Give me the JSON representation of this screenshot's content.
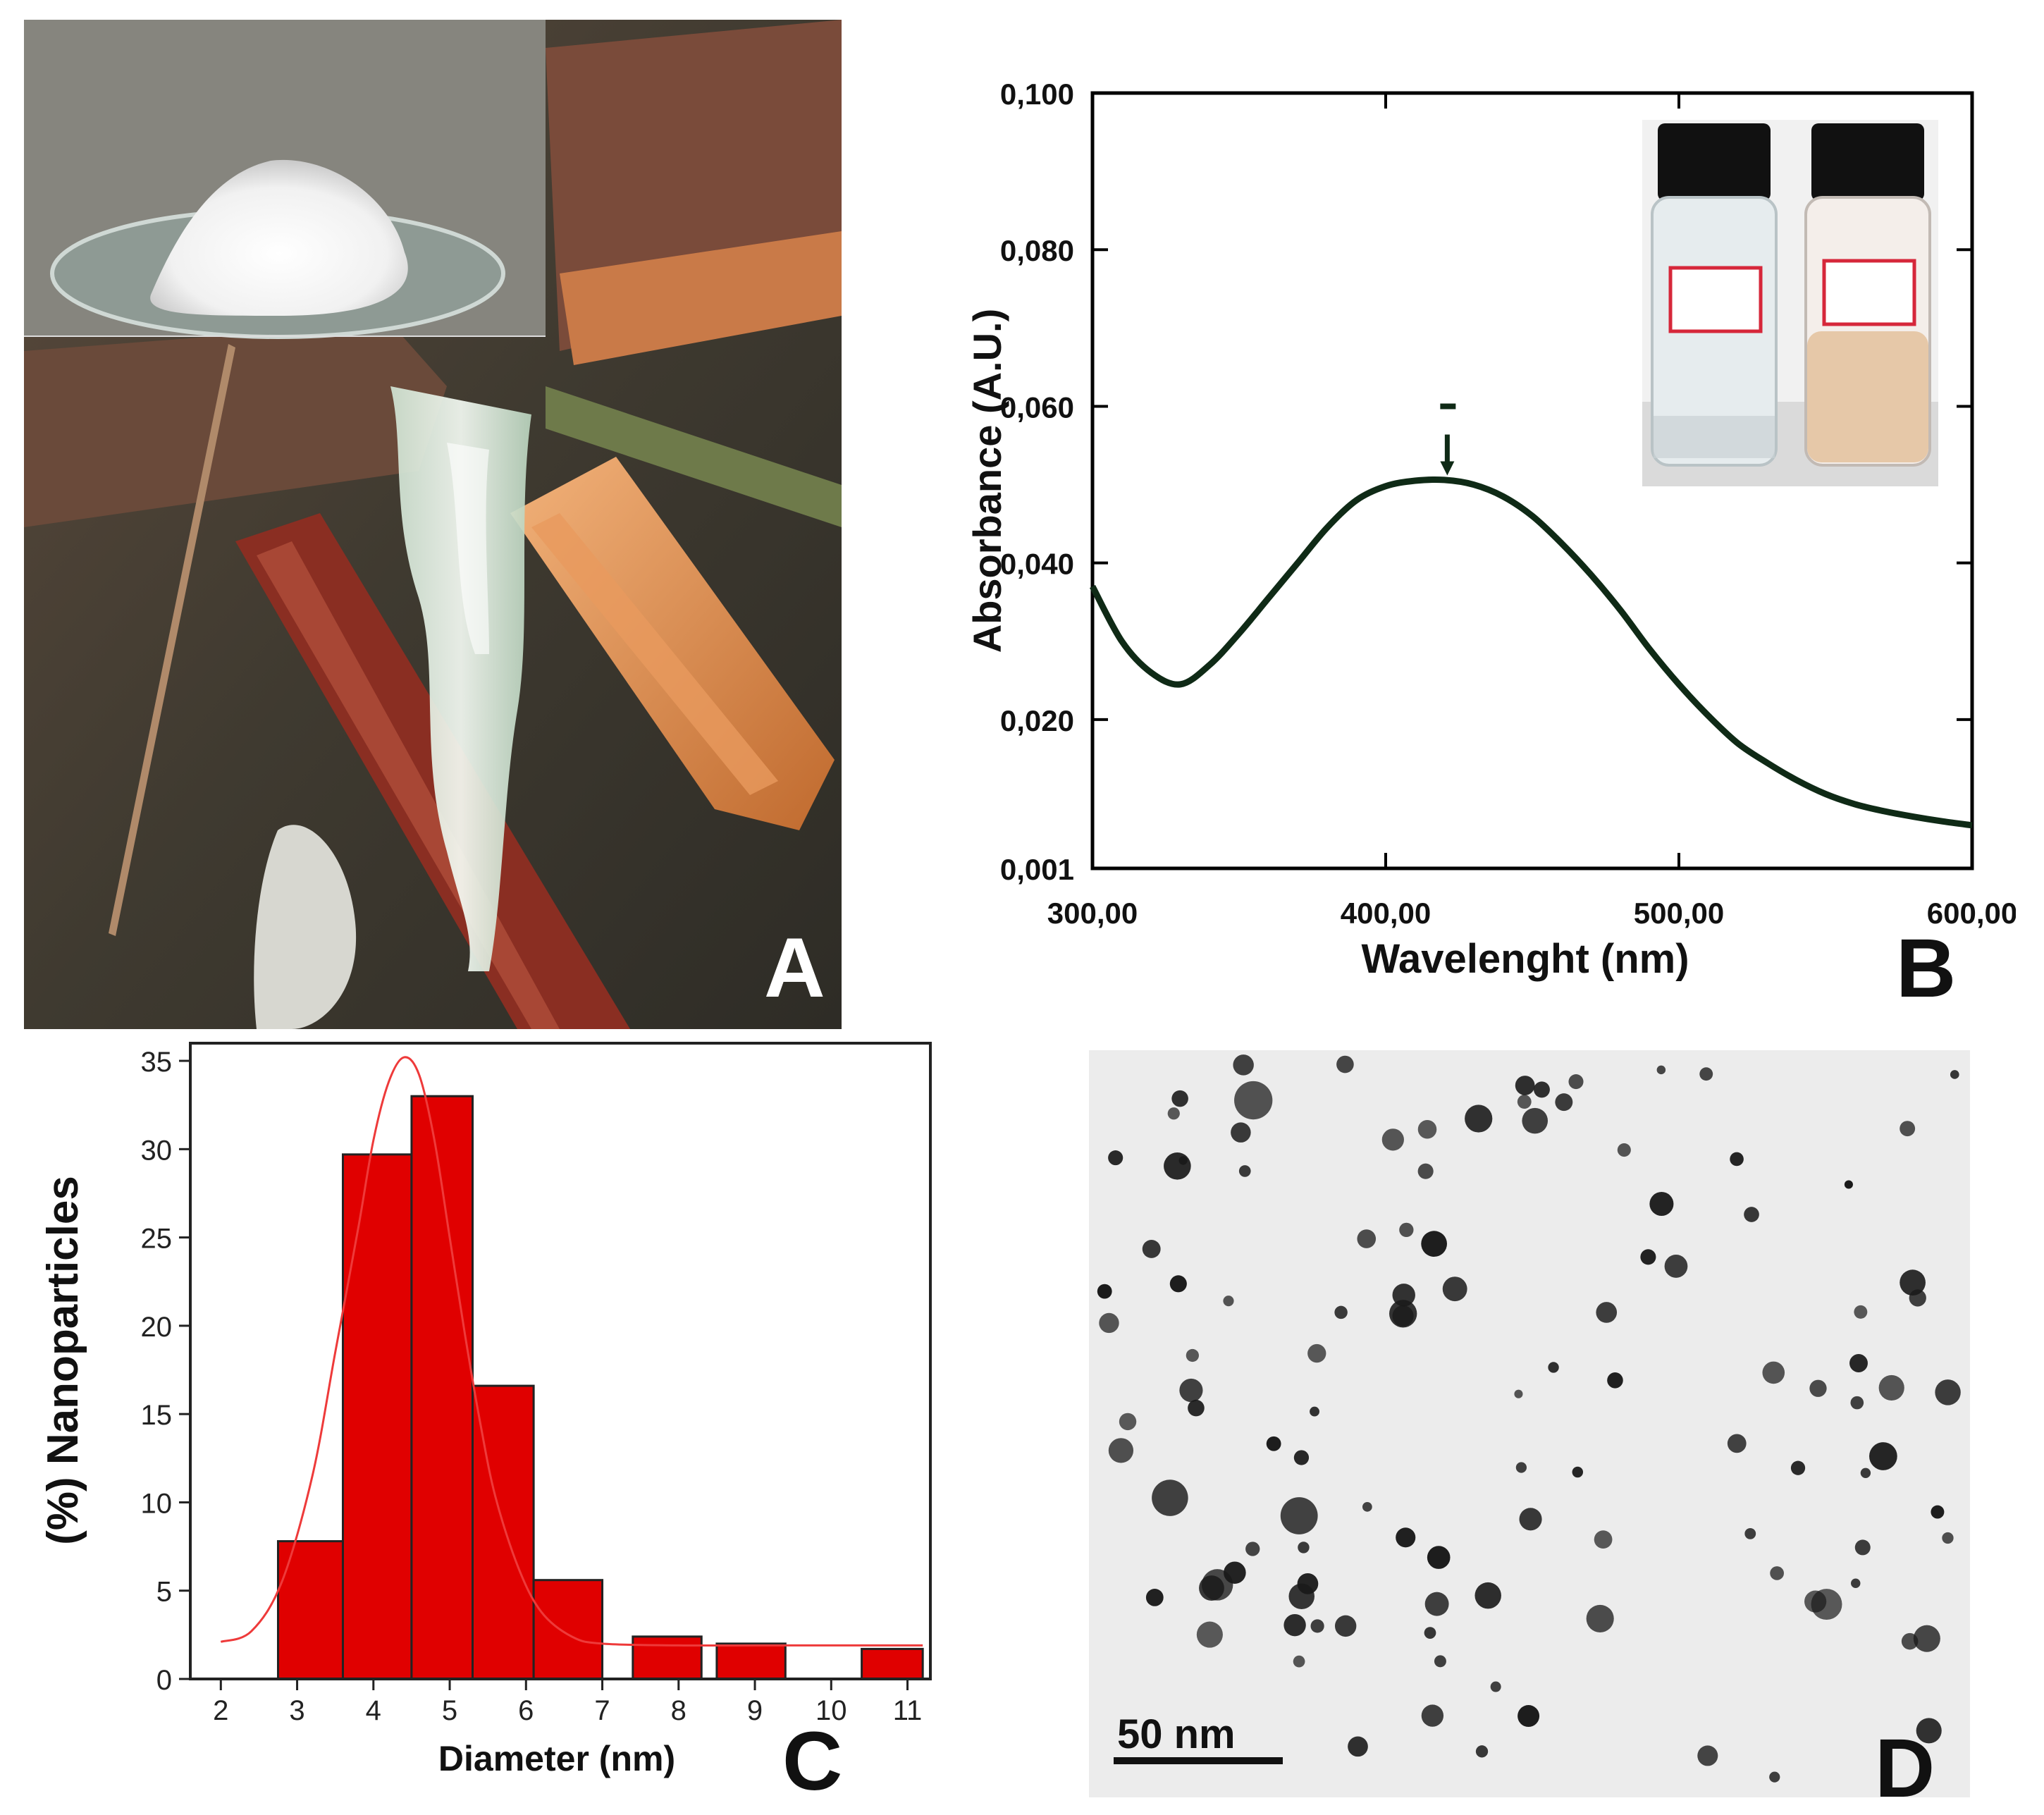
{
  "panels": {
    "a": {
      "letter": "A"
    },
    "b": {
      "letter": "B"
    },
    "c": {
      "letter": "C"
    },
    "d": {
      "letter": "D",
      "scale_bar_label": "50 nm"
    }
  },
  "colors": {
    "spectrum_line": "#0f2a16",
    "histogram_fill": "#e00000",
    "fit_curve": "#ee3a3a",
    "tem_particles": "#1a1a1a",
    "tem_background": "#ececec"
  },
  "icons": {
    "gum_photo": "tree-gum-photo",
    "powder_inset": "powder-dish-photo",
    "vials_inset": "vials-photo",
    "tem": "tem-micrograph"
  },
  "chart_data": [
    {
      "panel": "B",
      "type": "line",
      "xlabel": "Wavelenght (nm)",
      "ylabel": "Absorbance (A.U.)",
      "xlim": [
        300,
        600
      ],
      "ylim": [
        0.001,
        0.1
      ],
      "x_ticks": [
        "300,00",
        "400,00",
        "500,00",
        "600,00"
      ],
      "y_ticks": [
        "0,001",
        "0,020",
        "0,040",
        "0,060",
        "0,080",
        "0,100"
      ],
      "series": [
        {
          "x": [
            300,
            310,
            320,
            330,
            340,
            350,
            360,
            370,
            380,
            390,
            400,
            410,
            420,
            430,
            440,
            450,
            460,
            470,
            480,
            490,
            500,
            510,
            520,
            530,
            540,
            550,
            560,
            570,
            580,
            590,
            600
          ],
          "y": [
            0.037,
            0.03,
            0.026,
            0.0245,
            0.027,
            0.031,
            0.0355,
            0.04,
            0.0445,
            0.048,
            0.0498,
            0.0505,
            0.0506,
            0.05,
            0.0485,
            0.046,
            0.0425,
            0.0385,
            0.034,
            0.029,
            0.0245,
            0.0205,
            0.017,
            0.0145,
            0.0123,
            0.0105,
            0.0092,
            0.0083,
            0.0076,
            0.007,
            0.0065
          ]
        }
      ],
      "annotation": {
        "type": "arrow",
        "x": 421,
        "y_from": 0.06,
        "y_to": 0.051
      },
      "legend": "none",
      "grid": false
    },
    {
      "panel": "C",
      "type": "bar",
      "xlabel": "Diameter (nm)",
      "ylabel": "(%) Nanoparticles",
      "xlim": [
        1.6,
        11.3
      ],
      "ylim": [
        0,
        36
      ],
      "x_ticks": [
        "2",
        "3",
        "4",
        "5",
        "6",
        "7",
        "8",
        "9",
        "10",
        "11"
      ],
      "y_ticks": [
        "0",
        "5",
        "10",
        "15",
        "20",
        "25",
        "30",
        "35"
      ],
      "bins": [
        {
          "x0": 2.75,
          "x1": 3.6,
          "value": 7.8
        },
        {
          "x0": 3.6,
          "x1": 4.5,
          "value": 29.7
        },
        {
          "x0": 4.5,
          "x1": 5.3,
          "value": 33.0
        },
        {
          "x0": 5.3,
          "x1": 6.1,
          "value": 16.6
        },
        {
          "x0": 6.1,
          "x1": 7.0,
          "value": 5.6
        },
        {
          "x0": 7.4,
          "x1": 8.3,
          "value": 2.4
        },
        {
          "x0": 8.5,
          "x1": 9.4,
          "value": 2.0
        },
        {
          "x0": 10.4,
          "x1": 11.2,
          "value": 1.7
        }
      ],
      "fit_curve": {
        "x": [
          2.0,
          2.4,
          2.8,
          3.2,
          3.5,
          3.8,
          4.0,
          4.2,
          4.4,
          4.6,
          4.8,
          5.0,
          5.2,
          5.4,
          5.6,
          5.9,
          6.2,
          6.6,
          7.0,
          8.0,
          9.0,
          10.0,
          11.2
        ],
        "y": [
          2.1,
          2.7,
          5.5,
          11.5,
          18.5,
          25.5,
          30.5,
          33.8,
          35.2,
          34.2,
          30.5,
          25.0,
          19.5,
          14.5,
          10.3,
          6.3,
          3.8,
          2.4,
          2.0,
          1.9,
          1.9,
          1.9,
          1.9
        ]
      },
      "legend": "none",
      "grid": false
    }
  ]
}
